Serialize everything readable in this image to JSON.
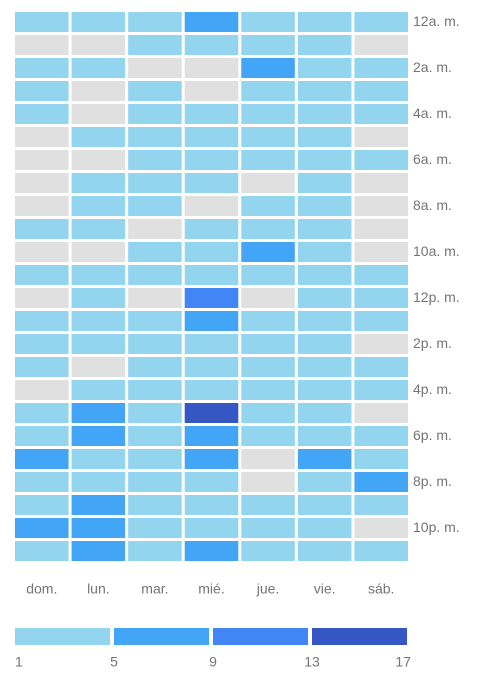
{
  "chart_data": {
    "type": "heatmap",
    "columns": [
      "dom.",
      "lun.",
      "mar.",
      "mié.",
      "jue.",
      "vie.",
      "sáb."
    ],
    "rows": [
      "12a. m.",
      null,
      "2a. m.",
      null,
      "4a. m.",
      null,
      "6a. m.",
      null,
      "8a. m.",
      null,
      "10a. m.",
      null,
      "12p. m.",
      null,
      "2p. m.",
      null,
      "4p. m.",
      null,
      "6p. m.",
      null,
      "8p. m.",
      null,
      "10p. m.",
      null
    ],
    "values": [
      [
        3,
        3,
        3,
        7,
        3,
        3,
        3
      ],
      [
        0,
        0,
        3,
        3,
        3,
        3,
        0
      ],
      [
        3,
        3,
        0,
        0,
        7,
        3,
        3
      ],
      [
        3,
        0,
        3,
        0,
        3,
        3,
        3
      ],
      [
        3,
        0,
        3,
        3,
        3,
        3,
        3
      ],
      [
        0,
        3,
        3,
        3,
        3,
        3,
        0
      ],
      [
        0,
        0,
        3,
        3,
        3,
        3,
        3
      ],
      [
        0,
        3,
        3,
        3,
        0,
        3,
        0
      ],
      [
        0,
        3,
        3,
        0,
        3,
        3,
        0
      ],
      [
        3,
        3,
        0,
        3,
        3,
        3,
        0
      ],
      [
        0,
        0,
        3,
        3,
        7,
        3,
        0
      ],
      [
        3,
        3,
        3,
        3,
        3,
        3,
        3
      ],
      [
        0,
        3,
        0,
        11,
        0,
        3,
        3
      ],
      [
        3,
        3,
        3,
        7,
        3,
        3,
        3
      ],
      [
        3,
        3,
        3,
        3,
        3,
        3,
        0
      ],
      [
        3,
        0,
        3,
        3,
        3,
        3,
        3
      ],
      [
        0,
        3,
        3,
        3,
        3,
        3,
        3
      ],
      [
        3,
        7,
        3,
        15,
        3,
        3,
        0
      ],
      [
        3,
        7,
        3,
        7,
        3,
        3,
        3
      ],
      [
        7,
        3,
        3,
        7,
        0,
        7,
        3
      ],
      [
        3,
        3,
        3,
        3,
        0,
        3,
        7
      ],
      [
        3,
        7,
        3,
        3,
        3,
        3,
        3
      ],
      [
        7,
        7,
        3,
        3,
        3,
        3,
        0
      ],
      [
        3,
        7,
        3,
        7,
        3,
        3,
        3
      ]
    ],
    "scale_ticks": [
      1,
      5,
      9,
      13,
      17
    ],
    "scale_colors": [
      "#93d5ef",
      "#42a5f5",
      "#4285f4",
      "#3457c4"
    ],
    "empty_color": "#e0e0e0"
  }
}
